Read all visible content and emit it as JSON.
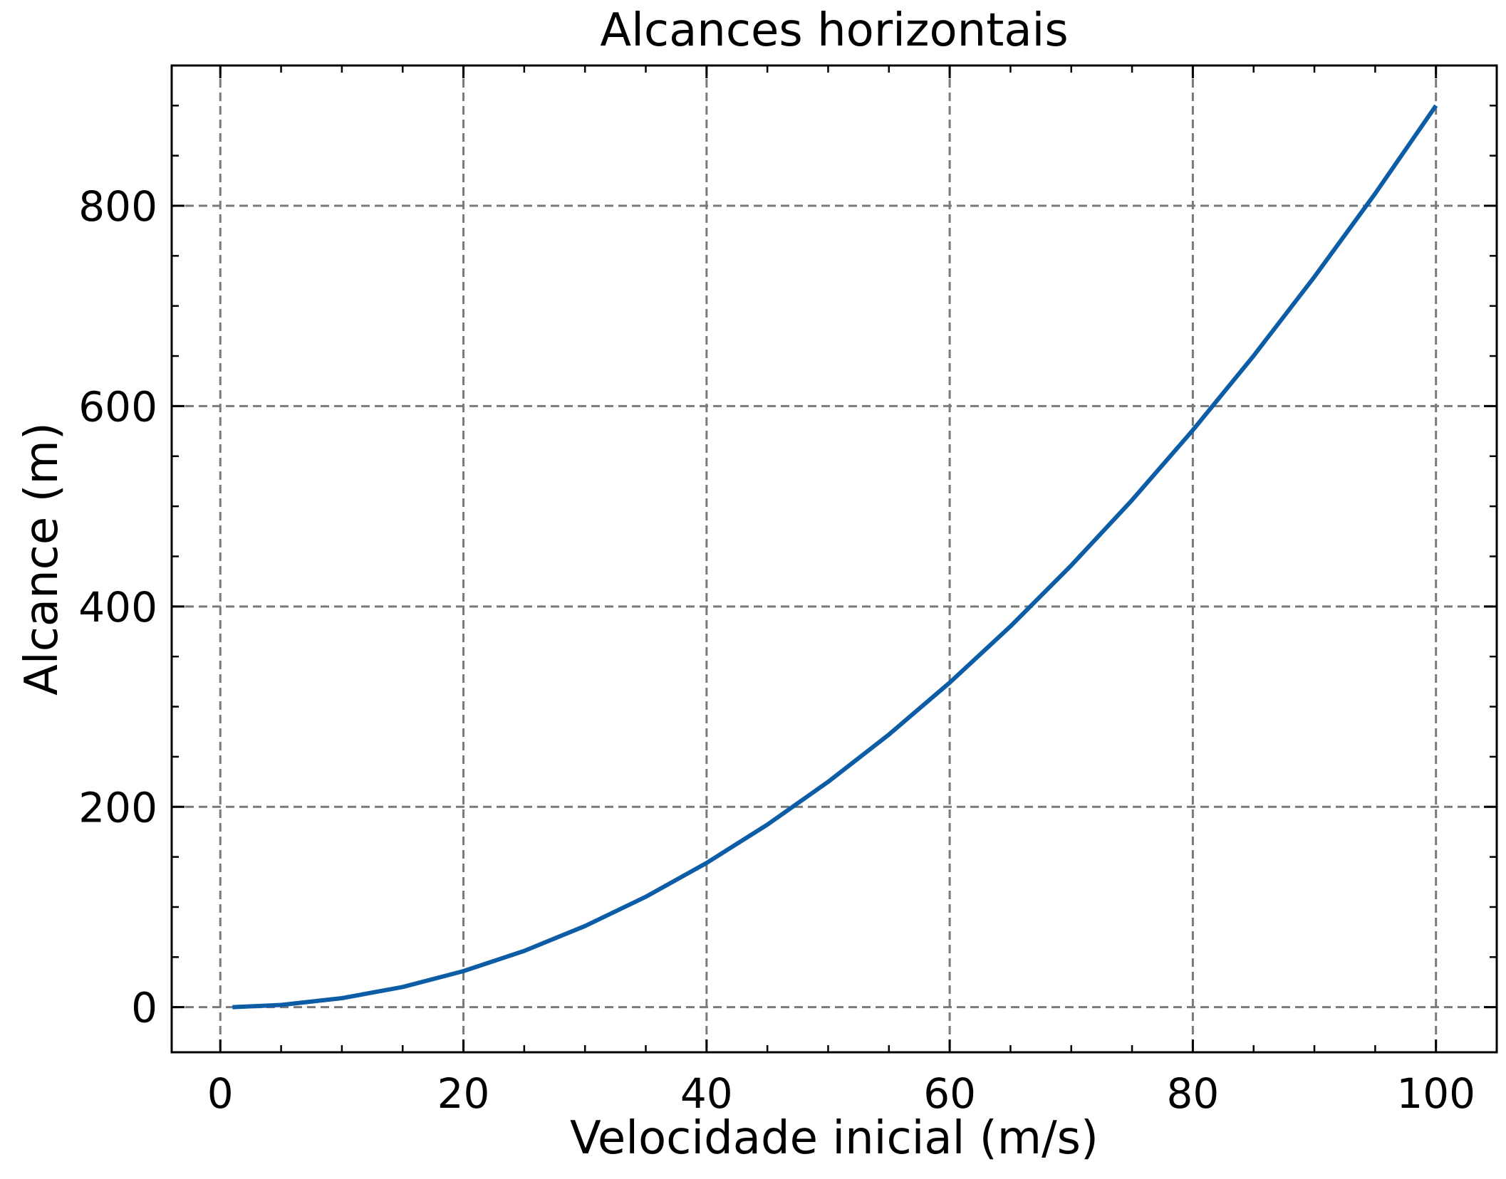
{
  "chart_data": {
    "type": "line",
    "title": "Alcances horizontais",
    "xlabel": "Velocidade inicial (m/s)",
    "ylabel": "Alcance (m)",
    "xlim": [
      -4,
      105
    ],
    "ylim": [
      -45,
      940
    ],
    "xticks": [
      0,
      20,
      40,
      60,
      80,
      100
    ],
    "yticks": [
      0,
      200,
      400,
      600,
      800
    ],
    "x_minor_step": 5,
    "y_minor_step": 50,
    "grid": true,
    "grid_style": "dashed",
    "tick_direction": "in",
    "series": [
      {
        "color": "#0c5da5",
        "x": [
          1,
          5,
          10,
          15,
          20,
          25,
          30,
          35,
          40,
          45,
          50,
          55,
          60,
          65,
          70,
          75,
          80,
          85,
          90,
          95,
          100
        ],
        "y": [
          0.09,
          2.25,
          9.0,
          20.2,
          36.0,
          56.2,
          81.0,
          110.2,
          144.0,
          182.2,
          225.0,
          272.2,
          324.0,
          380.2,
          441.0,
          506.2,
          576.0,
          650.2,
          729.0,
          812.2,
          900.0
        ]
      }
    ]
  }
}
